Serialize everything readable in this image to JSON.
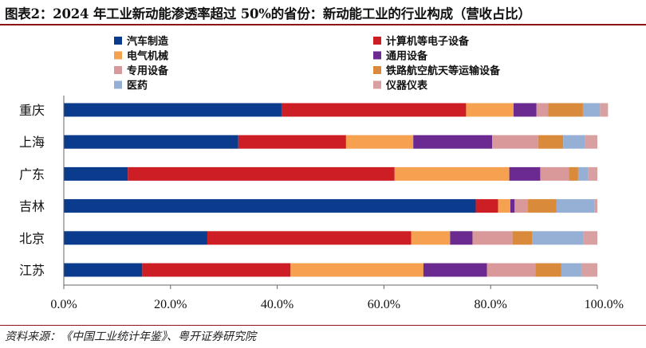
{
  "header": {
    "title": "图表2：2024 年工业新动能渗透率超过 50%的省份：新动能工业的行业构成（营收占比）"
  },
  "footer": {
    "source": "资料来源：《中国工业统计年鉴》、粤开证券研究院"
  },
  "chart_data": {
    "type": "bar",
    "orientation": "horizontal",
    "stacked": "percent",
    "categories": [
      "重庆",
      "上海",
      "广东",
      "吉林",
      "北京",
      "江苏"
    ],
    "series": [
      {
        "name": "汽车制造",
        "color": "#0b3b8c",
        "values": [
          40.8,
          32.7,
          12.0,
          77.2,
          26.9,
          14.7
        ]
      },
      {
        "name": "计算机等电子设备",
        "color": "#cc1e24",
        "values": [
          34.6,
          20.2,
          50.0,
          4.2,
          38.2,
          27.8
        ]
      },
      {
        "name": "电气机械",
        "color": "#f6a14f",
        "values": [
          8.9,
          12.6,
          21.5,
          2.3,
          7.3,
          24.9
        ]
      },
      {
        "name": "通用设备",
        "color": "#6a2a8f",
        "values": [
          4.3,
          14.8,
          5.8,
          0.8,
          4.2,
          11.9
        ]
      },
      {
        "name": "专用设备",
        "color": "#d9999a",
        "values": [
          2.2,
          8.6,
          5.4,
          2.5,
          7.5,
          9.1
        ]
      },
      {
        "name": "铁路航空航天等运输设备",
        "color": "#d98a3a",
        "values": [
          6.5,
          4.7,
          1.7,
          5.3,
          3.7,
          4.8
        ]
      },
      {
        "name": "医药",
        "color": "#95b0d4",
        "values": [
          3.2,
          4.1,
          1.9,
          7.2,
          9.6,
          3.8
        ]
      },
      {
        "name": "仪器仪表",
        "color": "#d9a0a2",
        "values": [
          1.5,
          2.3,
          1.7,
          0.5,
          2.6,
          3.0
        ]
      }
    ],
    "xlim": [
      0,
      100
    ],
    "xticks": [
      "0.0%",
      "20.0%",
      "40.0%",
      "60.0%",
      "80.0%",
      "100.0%"
    ],
    "legend_position": "top",
    "grid": false
  }
}
